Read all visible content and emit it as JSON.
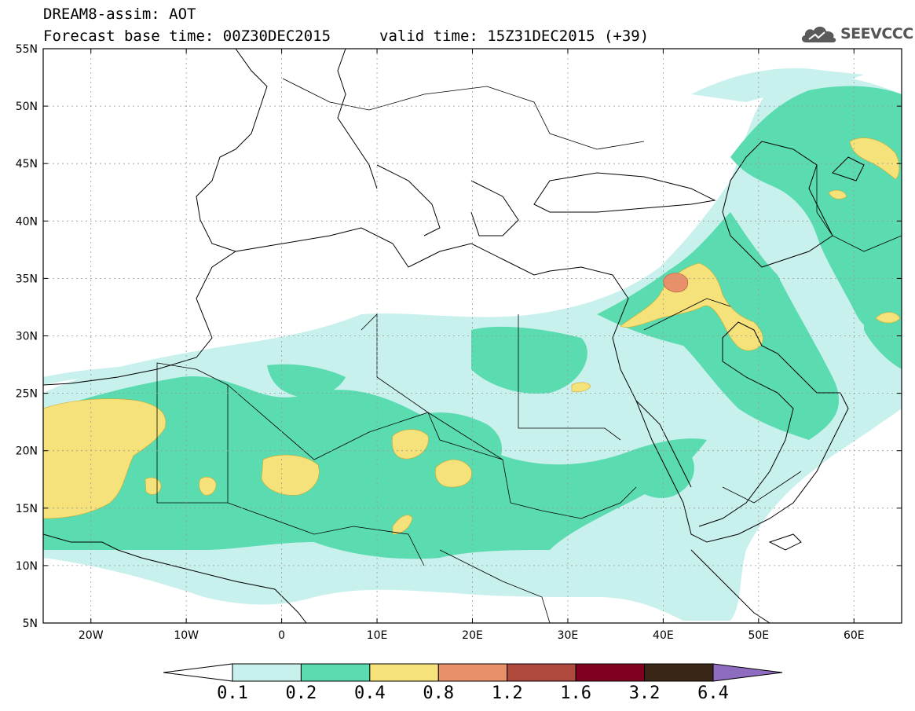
{
  "header": {
    "title": "DREAM8-assim: AOT",
    "base_time": "Forecast base time: 00Z30DEC2015",
    "valid_time": "valid time: 15Z31DEC2015 (+39)",
    "logo_text": "SEEVCCC",
    "logo_icon": "cloud-icon"
  },
  "map": {
    "lat_labels": [
      "55N",
      "50N",
      "45N",
      "40N",
      "35N",
      "30N",
      "25N",
      "20N",
      "15N",
      "10N",
      "5N"
    ],
    "lon_labels": [
      "20W",
      "10W",
      "0",
      "10E",
      "20E",
      "30E",
      "40E",
      "50E",
      "60E"
    ],
    "lat_range": [
      5,
      55
    ],
    "lon_range": [
      -25,
      65
    ],
    "grid": true
  },
  "colorbar": {
    "labels": [
      "0.1",
      "0.2",
      "0.4",
      "0.8",
      "1.2",
      "1.6",
      "3.2",
      "6.4"
    ],
    "colors": [
      "#ffffff",
      "#c8f0ec",
      "#5adcb0",
      "#f5e27a",
      "#e8906a",
      "#b04a3c",
      "#800020",
      "#3a2616",
      "#8e6cc0"
    ]
  }
}
